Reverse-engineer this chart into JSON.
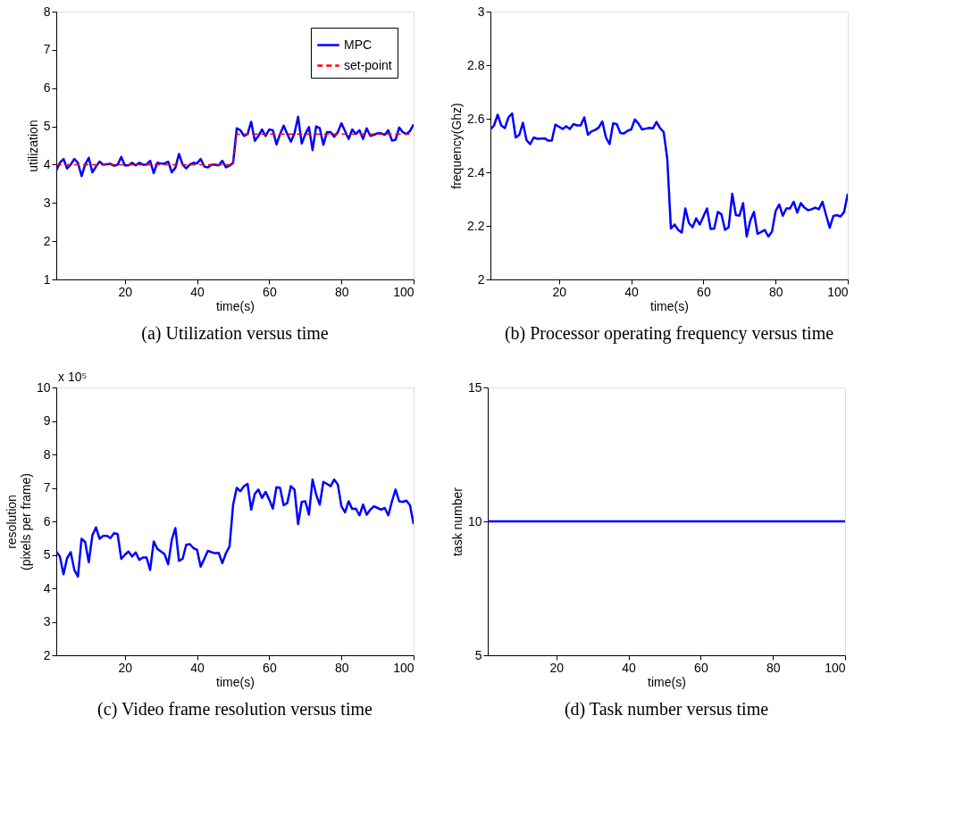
{
  "chart_data": [
    {
      "type": "line",
      "title": "(a) Utilization versus time",
      "xlabel": "time(s)",
      "ylabel": "utilization",
      "xlim": [
        1,
        100
      ],
      "xticks": [
        20,
        40,
        60,
        80,
        100
      ],
      "ylim": [
        1,
        8
      ],
      "yticks": [
        1,
        2,
        3,
        4,
        5,
        6,
        7,
        8
      ],
      "legend": "top right",
      "grid": false,
      "series": [
        {
          "name": "MPC",
          "color": "#0000ff",
          "line_style": "solid",
          "x": [
            1,
            2,
            3,
            4,
            5,
            6,
            7,
            8,
            9,
            10,
            11,
            12,
            13,
            14,
            16,
            17,
            18,
            19,
            20,
            21,
            22,
            23,
            24,
            25,
            26,
            27,
            28,
            29,
            30,
            31,
            32,
            33,
            34,
            35,
            36,
            37,
            38,
            39,
            40,
            41,
            42,
            43,
            44,
            45,
            46,
            47,
            48,
            49,
            50,
            51,
            52,
            53,
            54,
            55,
            56,
            57,
            58,
            59,
            60,
            61,
            62,
            63,
            64,
            65,
            66,
            67,
            68,
            69,
            70,
            71,
            72,
            73,
            74,
            75,
            76,
            77,
            78,
            79,
            80,
            81,
            82,
            83,
            84,
            85,
            86,
            87,
            88,
            89,
            90,
            91,
            92,
            93,
            94,
            95,
            96,
            97,
            98,
            99,
            100
          ],
          "values": [
            3.85,
            4.05,
            4.15,
            3.9,
            4.0,
            4.15,
            4.05,
            3.7,
            4.0,
            4.18,
            3.8,
            3.95,
            4.08,
            4.0,
            4.02,
            3.97,
            4.0,
            4.2,
            3.98,
            3.98,
            4.05,
            3.98,
            4.05,
            4.0,
            4.0,
            4.1,
            3.78,
            4.05,
            4.03,
            4.03,
            4.08,
            3.8,
            3.92,
            4.28,
            4.0,
            3.9,
            4.0,
            4.05,
            4.03,
            4.15,
            3.95,
            3.93,
            4.0,
            4.0,
            3.98,
            4.1,
            3.93,
            3.97,
            4.05,
            4.95,
            4.9,
            4.75,
            4.8,
            5.12,
            4.62,
            4.75,
            4.92,
            4.75,
            4.92,
            4.9,
            4.53,
            4.8,
            5.02,
            4.8,
            4.6,
            4.82,
            5.25,
            4.55,
            4.8,
            4.98,
            4.38,
            5.0,
            4.95,
            4.52,
            4.85,
            4.85,
            4.73,
            4.85,
            5.08,
            4.88,
            4.67,
            4.92,
            4.8,
            4.9,
            4.67,
            4.95,
            4.75,
            4.78,
            4.82,
            4.82,
            4.78,
            4.9,
            4.63,
            4.65,
            4.97,
            4.85,
            4.8,
            4.88,
            5.05
          ]
        },
        {
          "name": "set-point",
          "color": "#ff0000",
          "line_style": "dashed",
          "x": [
            1,
            50,
            51,
            100
          ],
          "values": [
            4,
            4,
            4.8,
            4.8
          ]
        }
      ]
    },
    {
      "type": "line",
      "title": "(b) Processor operating frequency versus time",
      "xlabel": "time(s)",
      "ylabel": "frequency(Ghz)",
      "xlim": [
        1,
        100
      ],
      "xticks": [
        20,
        40,
        60,
        80,
        100
      ],
      "ylim": [
        2,
        3
      ],
      "yticks": [
        2,
        {
          "value": 2.2,
          "label": "2.2"
        },
        {
          "value": 2.4,
          "label": "2.4"
        },
        {
          "value": 2.6,
          "label": "2.6"
        },
        {
          "value": 2.8,
          "label": "2.8"
        },
        3
      ],
      "grid": false,
      "series": [
        {
          "color": "#0000ff",
          "x": [
            1,
            2,
            3,
            4,
            5,
            6,
            7,
            8,
            9,
            10,
            11,
            12,
            13,
            14,
            16,
            17,
            18,
            19,
            20,
            21,
            22,
            23,
            24,
            25,
            26,
            27,
            28,
            29,
            30,
            31,
            32,
            33,
            34,
            35,
            36,
            37,
            38,
            39,
            40,
            41,
            42,
            43,
            44,
            45,
            46,
            47,
            48,
            49,
            50,
            51,
            52,
            53,
            54,
            55,
            56,
            57,
            58,
            59,
            60,
            61,
            62,
            63,
            64,
            65,
            66,
            67,
            68,
            69,
            70,
            71,
            72,
            73,
            74,
            75,
            76,
            77,
            78,
            79,
            80,
            81,
            82,
            83,
            84,
            85,
            86,
            87,
            88,
            89,
            90,
            91,
            92,
            93,
            94,
            95,
            96,
            97,
            98,
            99,
            100
          ],
          "values": [
            2.56,
            2.575,
            2.615,
            2.575,
            2.565,
            2.605,
            2.62,
            2.53,
            2.54,
            2.585,
            2.52,
            2.505,
            2.53,
            2.525,
            2.527,
            2.518,
            2.518,
            2.578,
            2.57,
            2.562,
            2.572,
            2.562,
            2.58,
            2.575,
            2.575,
            2.605,
            2.54,
            2.553,
            2.558,
            2.567,
            2.59,
            2.53,
            2.505,
            2.583,
            2.58,
            2.547,
            2.545,
            2.555,
            2.56,
            2.597,
            2.582,
            2.56,
            2.563,
            2.566,
            2.564,
            2.588,
            2.565,
            2.55,
            2.45,
            2.19,
            2.205,
            2.185,
            2.175,
            2.265,
            2.21,
            2.195,
            2.228,
            2.205,
            2.235,
            2.265,
            2.188,
            2.19,
            2.252,
            2.243,
            2.185,
            2.195,
            2.32,
            2.24,
            2.238,
            2.285,
            2.16,
            2.22,
            2.252,
            2.17,
            2.177,
            2.185,
            2.16,
            2.178,
            2.255,
            2.28,
            2.238,
            2.265,
            2.265,
            2.29,
            2.25,
            2.285,
            2.268,
            2.258,
            2.262,
            2.268,
            2.262,
            2.29,
            2.24,
            2.193,
            2.237,
            2.24,
            2.235,
            2.252,
            2.32
          ]
        }
      ]
    },
    {
      "type": "line",
      "title": "(c) Video frame resolution versus time",
      "xlabel": "time(s)",
      "ylabel": "resolution\n(pixels per frame)",
      "annotations": [
        "x 10⁵"
      ],
      "xlim": [
        1,
        100
      ],
      "xticks": [
        20,
        40,
        60,
        80,
        100
      ],
      "ylim": [
        2,
        10
      ],
      "yticks": [
        2,
        3,
        4,
        5,
        6,
        7,
        8,
        9,
        10
      ],
      "grid": false,
      "series": [
        {
          "color": "#0000ff",
          "x": [
            1,
            2,
            3,
            4,
            5,
            6,
            7,
            8,
            9,
            10,
            11,
            12,
            13,
            14,
            15,
            16,
            17,
            18,
            19,
            20,
            21,
            22,
            23,
            24,
            25,
            26,
            27,
            28,
            29,
            30,
            31,
            32,
            33,
            34,
            35,
            36,
            37,
            38,
            39,
            40,
            41,
            42,
            43,
            44,
            45,
            46,
            47,
            48,
            49,
            50,
            51,
            52,
            53,
            54,
            55,
            56,
            57,
            58,
            59,
            60,
            61,
            62,
            63,
            64,
            65,
            66,
            67,
            68,
            69,
            70,
            71,
            72,
            73,
            74,
            75,
            76,
            77,
            78,
            79,
            80,
            81,
            82,
            83,
            84,
            85,
            86,
            87,
            88,
            89,
            90,
            91,
            92,
            93,
            94,
            95,
            96,
            97,
            98,
            99,
            100
          ],
          "values": [
            5.1,
            4.95,
            4.42,
            4.9,
            5.08,
            4.55,
            4.35,
            5.48,
            5.38,
            4.78,
            5.58,
            5.82,
            5.48,
            5.57,
            5.57,
            5.5,
            5.65,
            5.62,
            4.88,
            5.0,
            5.1,
            4.95,
            5.07,
            4.85,
            4.92,
            4.92,
            4.55,
            5.4,
            5.18,
            5.1,
            5.02,
            4.72,
            5.45,
            5.8,
            4.82,
            4.88,
            5.3,
            5.32,
            5.2,
            5.15,
            4.65,
            4.88,
            5.12,
            5.08,
            5.05,
            5.06,
            4.75,
            5.05,
            5.25,
            6.5,
            7.0,
            6.9,
            7.05,
            7.12,
            6.35,
            6.82,
            6.95,
            6.7,
            6.88,
            6.65,
            6.38,
            7.02,
            7.0,
            6.48,
            6.55,
            7.05,
            6.95,
            5.92,
            6.58,
            6.6,
            6.2,
            7.25,
            6.8,
            6.5,
            7.18,
            7.12,
            7.05,
            7.25,
            7.1,
            6.45,
            6.27,
            6.6,
            6.37,
            6.38,
            6.18,
            6.5,
            6.2,
            6.35,
            6.45,
            6.4,
            6.35,
            6.4,
            6.18,
            6.6,
            6.95,
            6.6,
            6.58,
            6.62,
            6.48,
            5.92
          ]
        }
      ]
    },
    {
      "type": "line",
      "title": "(d) Task number versus time",
      "xlabel": "time(s)",
      "ylabel": "task number",
      "xlim": [
        1,
        100
      ],
      "xticks": [
        20,
        40,
        60,
        80,
        100
      ],
      "ylim": [
        5,
        15
      ],
      "yticks": [
        5,
        10,
        15
      ],
      "grid": false,
      "series": [
        {
          "color": "#0000ff",
          "x": [
            1,
            100
          ],
          "values": [
            10,
            10
          ]
        }
      ]
    }
  ]
}
